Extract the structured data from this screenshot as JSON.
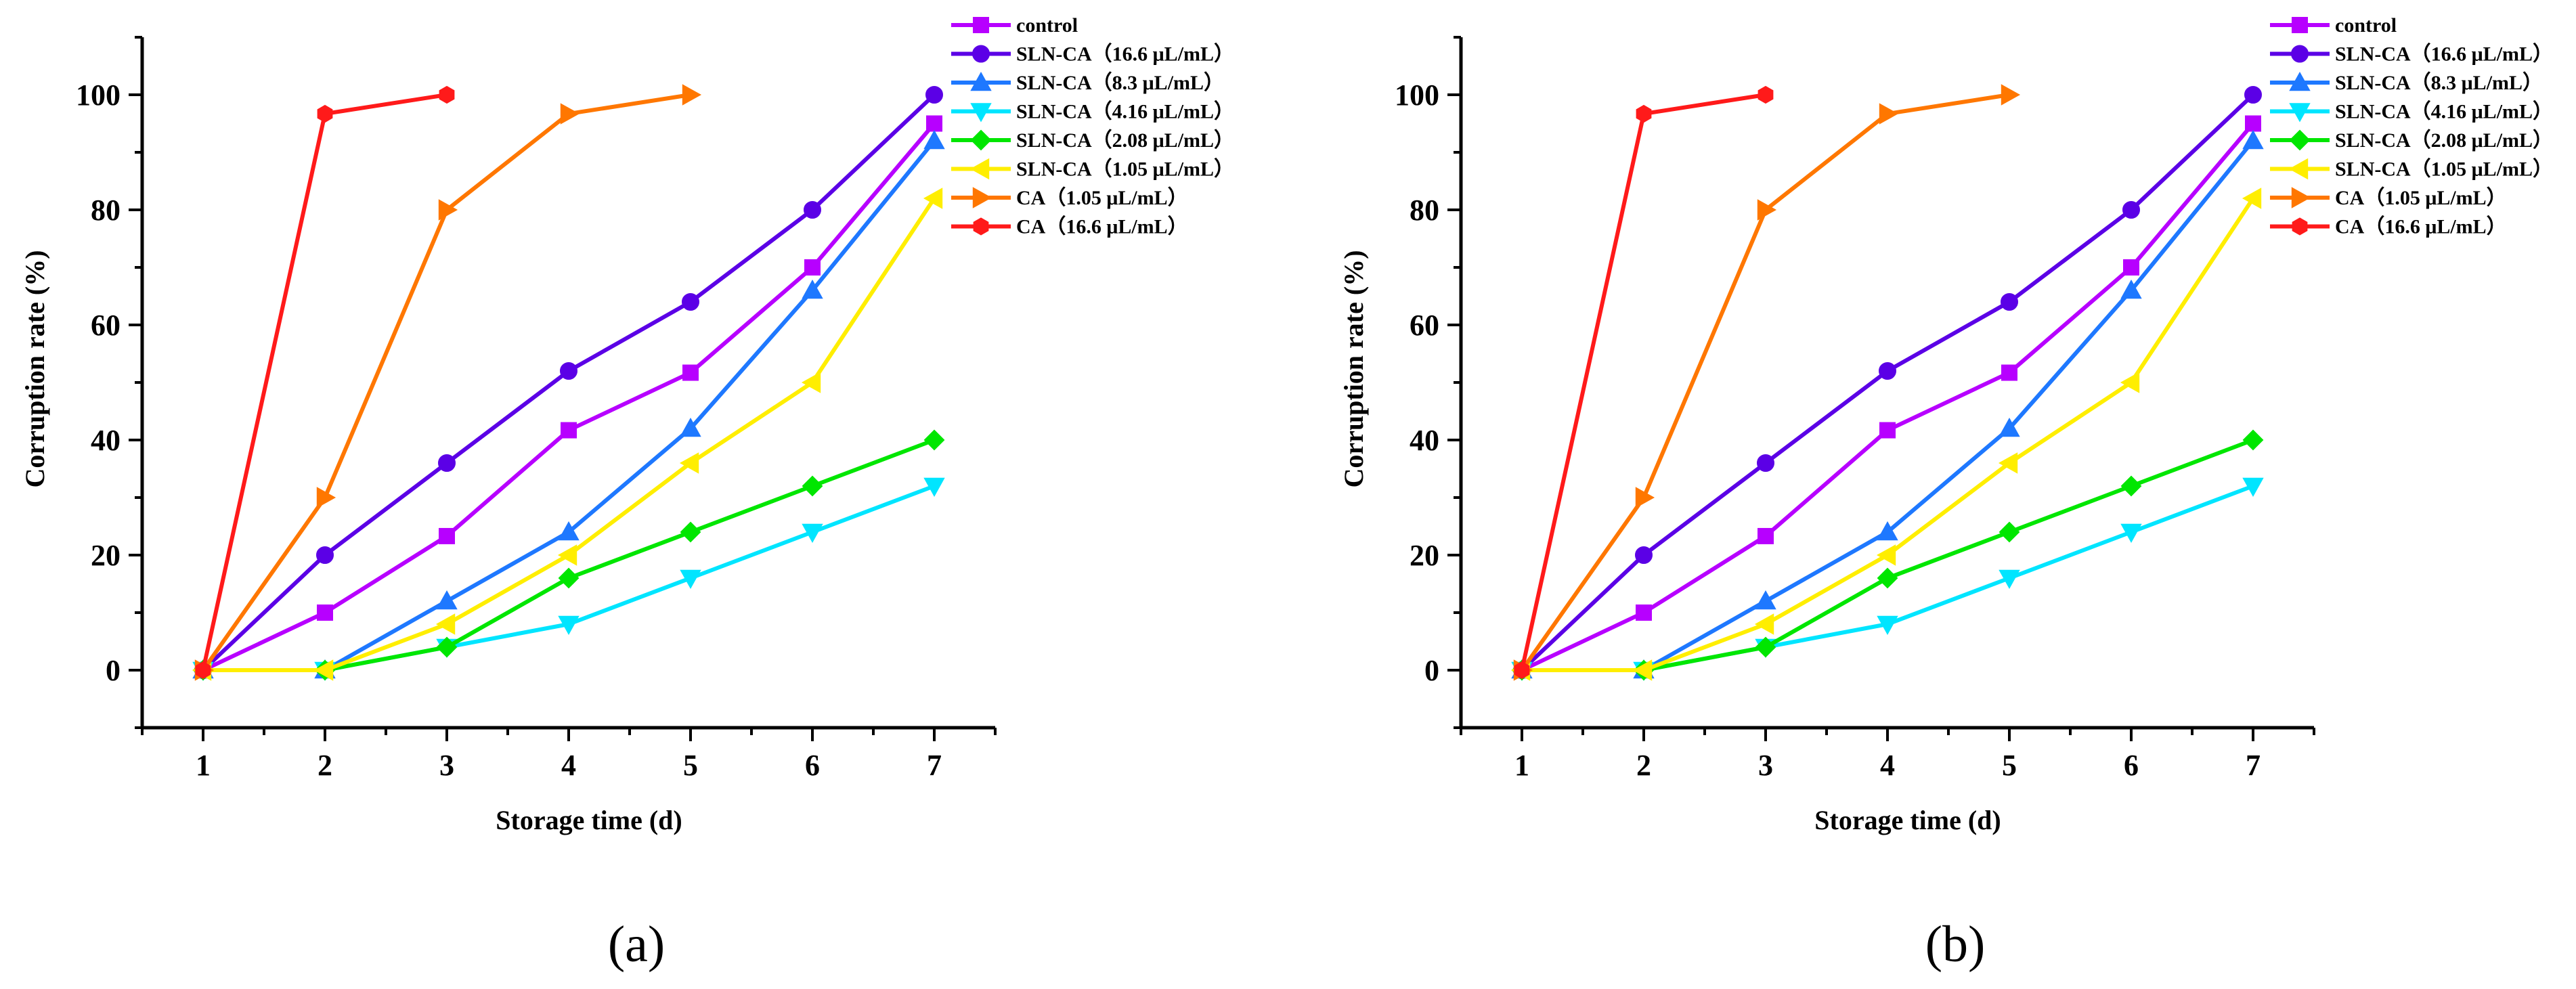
{
  "chart_data": [
    {
      "panel_label": "(a)",
      "type": "line",
      "xlabel": "Storage time (d)",
      "ylabel": "Corruption rate (%)",
      "xlim": [
        0.5,
        7.5
      ],
      "ylim": [
        -10,
        110
      ],
      "x_ticks": [
        1,
        2,
        3,
        4,
        5,
        6,
        7
      ],
      "y_ticks": [
        0,
        20,
        40,
        60,
        80,
        100
      ],
      "grid": false,
      "legend_position": "top-right",
      "series": [
        {
          "name": "control",
          "color": "#b700ff",
          "marker": "square",
          "x": [
            1,
            2,
            3,
            4,
            5,
            6,
            7
          ],
          "y": [
            0,
            10,
            23.3,
            41.7,
            51.7,
            70,
            95
          ]
        },
        {
          "name": "SLN-CA（16.6 μL/mL）",
          "color": "#5b00e6",
          "marker": "circle",
          "x": [
            1,
            2,
            3,
            4,
            5,
            6,
            7
          ],
          "y": [
            0,
            20,
            36,
            52,
            64,
            80,
            100
          ]
        },
        {
          "name": "SLN-CA（8.3 μL/mL）",
          "color": "#1e78ff",
          "marker": "triangle-up",
          "x": [
            1,
            2,
            3,
            4,
            5,
            6,
            7
          ],
          "y": [
            0,
            0,
            12,
            24,
            42,
            66,
            92
          ]
        },
        {
          "name": "SLN-CA（4.16 μL/mL）",
          "color": "#00e5ff",
          "marker": "triangle-down",
          "x": [
            1,
            2,
            3,
            4,
            5,
            6,
            7
          ],
          "y": [
            0,
            0,
            4,
            8,
            16,
            24,
            32
          ]
        },
        {
          "name": "SLN-CA（2.08 μL/mL）",
          "color": "#00e600",
          "marker": "diamond",
          "x": [
            1,
            2,
            3,
            4,
            5,
            6,
            7
          ],
          "y": [
            0,
            0,
            4,
            16,
            24,
            32,
            40
          ]
        },
        {
          "name": "SLN-CA（1.05 μL/mL）",
          "color": "#ffee00",
          "marker": "triangle-left",
          "x": [
            1,
            2,
            3,
            4,
            5,
            6,
            7
          ],
          "y": [
            0,
            0,
            8,
            20,
            36,
            50,
            82
          ]
        },
        {
          "name": "CA（1.05 μL/mL）",
          "color": "#ff7700",
          "marker": "triangle-right",
          "x": [
            1,
            2,
            3,
            4,
            5
          ],
          "y": [
            0,
            30,
            80,
            96.7,
            100
          ]
        },
        {
          "name": "CA（16.6 μL/mL）",
          "color": "#ff1a1a",
          "marker": "hexagon",
          "x": [
            1,
            2,
            3
          ],
          "y": [
            0,
            96.7,
            100
          ]
        }
      ]
    },
    {
      "panel_label": "(b)",
      "type": "line",
      "xlabel": "Storage time (d)",
      "ylabel": "Corruption rate (%)",
      "xlim": [
        0.5,
        7.5
      ],
      "ylim": [
        -10,
        110
      ],
      "x_ticks": [
        1,
        2,
        3,
        4,
        5,
        6,
        7
      ],
      "y_ticks": [
        0,
        20,
        40,
        60,
        80,
        100
      ],
      "grid": false,
      "legend_position": "top-right",
      "series": [
        {
          "name": "control",
          "color": "#b700ff",
          "marker": "square",
          "x": [
            1,
            2,
            3,
            4,
            5,
            6,
            7
          ],
          "y": [
            0,
            10,
            23.3,
            41.7,
            51.7,
            70,
            95
          ]
        },
        {
          "name": "SLN-CA（16.6 μL/mL）",
          "color": "#5b00e6",
          "marker": "circle",
          "x": [
            1,
            2,
            3,
            4,
            5,
            6,
            7
          ],
          "y": [
            0,
            20,
            36,
            52,
            64,
            80,
            100
          ]
        },
        {
          "name": "SLN-CA（8.3 μL/mL）",
          "color": "#1e78ff",
          "marker": "triangle-up",
          "x": [
            1,
            2,
            3,
            4,
            5,
            6,
            7
          ],
          "y": [
            0,
            0,
            12,
            24,
            42,
            66,
            92
          ]
        },
        {
          "name": "SLN-CA（4.16 μL/mL）",
          "color": "#00e5ff",
          "marker": "triangle-down",
          "x": [
            1,
            2,
            3,
            4,
            5,
            6,
            7
          ],
          "y": [
            0,
            0,
            4,
            8,
            16,
            24,
            32
          ]
        },
        {
          "name": "SLN-CA（2.08 μL/mL）",
          "color": "#00e600",
          "marker": "diamond",
          "x": [
            1,
            2,
            3,
            4,
            5,
            6,
            7
          ],
          "y": [
            0,
            0,
            4,
            16,
            24,
            32,
            40
          ]
        },
        {
          "name": "SLN-CA（1.05 μL/mL）",
          "color": "#ffee00",
          "marker": "triangle-left",
          "x": [
            1,
            2,
            3,
            4,
            5,
            6,
            7
          ],
          "y": [
            0,
            0,
            8,
            20,
            36,
            50,
            82
          ]
        },
        {
          "name": "CA（1.05 μL/mL）",
          "color": "#ff7700",
          "marker": "triangle-right",
          "x": [
            1,
            2,
            3,
            4,
            5
          ],
          "y": [
            0,
            30,
            80,
            96.7,
            100
          ]
        },
        {
          "name": "CA（16.6 μL/mL）",
          "color": "#ff1a1a",
          "marker": "hexagon",
          "x": [
            1,
            2,
            3
          ],
          "y": [
            0,
            96.7,
            100
          ]
        }
      ]
    }
  ]
}
